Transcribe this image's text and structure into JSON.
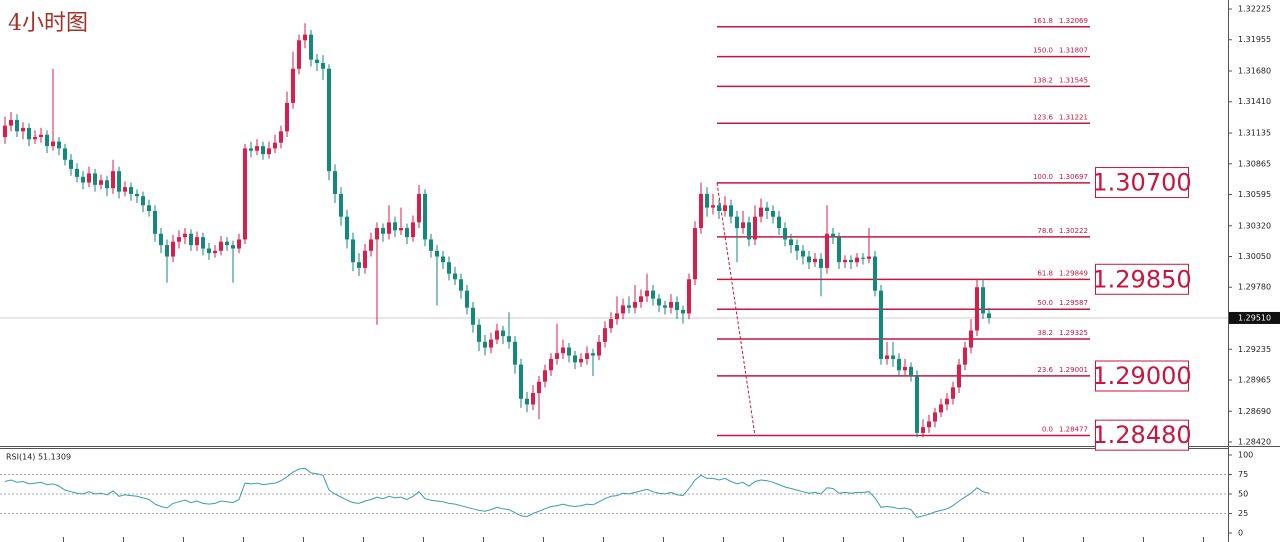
{
  "chart_data": {
    "type": "candlestick",
    "title": "4小时图",
    "colors": {
      "up": "#d81e4c",
      "down": "#12897b",
      "fib": "#c8163e",
      "rsi": "#3a9fa6"
    },
    "ylim": [
      1.2842,
      1.32225
    ],
    "yticks": [
      1.32225,
      1.31955,
      {
        "value": 1.3168,
        "label": "1.31680"
      },
      {
        "value": 1.3141,
        "label": "1.31410"
      },
      1.31135,
      1.30865,
      1.30595,
      {
        "value": 1.3032,
        "label": "1.30320"
      },
      {
        "value": 1.3005,
        "label": "1.30050"
      },
      {
        "value": 1.2978,
        "label": "1.29780"
      },
      1.29235,
      1.28965,
      {
        "value": 1.2869,
        "label": "1.28690"
      },
      {
        "value": 1.2842,
        "label": "1.28420"
      }
    ],
    "current_price": {
      "value": 1.2951,
      "label": "1.29510"
    },
    "candles": [
      [
        1.311,
        1.3128,
        1.3104,
        1.312
      ],
      [
        1.312,
        1.3132,
        1.3115,
        1.3125
      ],
      [
        1.3125,
        1.313,
        1.311,
        1.3115
      ],
      [
        1.3115,
        1.3123,
        1.3108,
        1.3118
      ],
      [
        1.3118,
        1.3122,
        1.3102,
        1.3108
      ],
      [
        1.3108,
        1.3116,
        1.3104,
        1.311
      ],
      [
        1.311,
        1.3118,
        1.3105,
        1.3112
      ],
      [
        1.3112,
        1.3116,
        1.3096,
        1.3102
      ],
      [
        1.3102,
        1.317,
        1.3098,
        1.3106
      ],
      [
        1.3106,
        1.311,
        1.3094,
        1.31
      ],
      [
        1.31,
        1.3104,
        1.3085,
        1.309
      ],
      [
        1.309,
        1.3095,
        1.3076,
        1.3082
      ],
      [
        1.3082,
        1.3087,
        1.307,
        1.3075
      ],
      [
        1.3075,
        1.308,
        1.3064,
        1.307
      ],
      [
        1.307,
        1.3084,
        1.3066,
        1.3078
      ],
      [
        1.3078,
        1.3082,
        1.3062,
        1.3068
      ],
      [
        1.3068,
        1.3077,
        1.3064,
        1.3072
      ],
      [
        1.3072,
        1.3076,
        1.3058,
        1.3065
      ],
      [
        1.3065,
        1.309,
        1.306,
        1.308
      ],
      [
        1.308,
        1.3084,
        1.3056,
        1.3062
      ],
      [
        1.3062,
        1.3071,
        1.3058,
        1.3066
      ],
      [
        1.3066,
        1.307,
        1.3054,
        1.306
      ],
      [
        1.306,
        1.3064,
        1.3052,
        1.3058
      ],
      [
        1.3058,
        1.3062,
        1.3044,
        1.305
      ],
      [
        1.305,
        1.3055,
        1.304,
        1.3045
      ],
      [
        1.3045,
        1.305,
        1.3018,
        1.3025
      ],
      [
        1.3025,
        1.303,
        1.3008,
        1.3015
      ],
      [
        1.3015,
        1.302,
        1.2982,
        1.3005
      ],
      [
        1.3005,
        1.3024,
        1.3,
        1.3018
      ],
      [
        1.3018,
        1.3028,
        1.3012,
        1.3022
      ],
      [
        1.3022,
        1.303,
        1.3016,
        1.3025
      ],
      [
        1.3025,
        1.3029,
        1.301,
        1.3015
      ],
      [
        1.3015,
        1.3027,
        1.301,
        1.3022
      ],
      [
        1.3022,
        1.3026,
        1.3006,
        1.3012
      ],
      [
        1.3012,
        1.3017,
        1.3002,
        1.3008
      ],
      [
        1.3008,
        1.3015,
        1.3004,
        1.301
      ],
      [
        1.301,
        1.3023,
        1.3006,
        1.3018
      ],
      [
        1.3018,
        1.3022,
        1.301,
        1.3015
      ],
      [
        1.3015,
        1.3019,
        1.2982,
        1.3012
      ],
      [
        1.3012,
        1.3025,
        1.3008,
        1.302
      ],
      [
        1.302,
        1.3104,
        1.3016,
        1.31
      ],
      [
        1.31,
        1.3106,
        1.3092,
        1.3098
      ],
      [
        1.3098,
        1.3108,
        1.3094,
        1.3102
      ],
      [
        1.3102,
        1.3106,
        1.309,
        1.3095
      ],
      [
        1.3095,
        1.3106,
        1.3091,
        1.31
      ],
      [
        1.31,
        1.3112,
        1.3096,
        1.3105
      ],
      [
        1.3105,
        1.312,
        1.31,
        1.3115
      ],
      [
        1.3115,
        1.315,
        1.311,
        1.314
      ],
      [
        1.314,
        1.3185,
        1.3135,
        1.317
      ],
      [
        1.317,
        1.32,
        1.3165,
        1.3195
      ],
      [
        1.3195,
        1.321,
        1.3188,
        1.32
      ],
      [
        1.32,
        1.3204,
        1.3172,
        1.3178
      ],
      [
        1.3178,
        1.3183,
        1.3168,
        1.3175
      ],
      [
        1.3175,
        1.3182,
        1.316,
        1.317
      ],
      [
        1.317,
        1.3174,
        1.3072,
        1.308
      ],
      [
        1.308,
        1.3086,
        1.3052,
        1.306
      ],
      [
        1.306,
        1.3066,
        1.3032,
        1.304
      ],
      [
        1.304,
        1.3046,
        1.3012,
        1.302
      ],
      [
        1.302,
        1.3026,
        1.2992,
        1.3
      ],
      [
        1.3,
        1.3008,
        1.2988,
        1.2995
      ],
      [
        1.2995,
        1.3016,
        1.299,
        1.301
      ],
      [
        1.301,
        1.3026,
        1.3005,
        1.302
      ],
      [
        1.302,
        1.3035,
        1.2945,
        1.303
      ],
      [
        1.303,
        1.3034,
        1.3018,
        1.3025
      ],
      [
        1.3025,
        1.305,
        1.302,
        1.3035
      ],
      [
        1.3035,
        1.304,
        1.3022,
        1.3028
      ],
      [
        1.3028,
        1.3048,
        1.3024,
        1.303
      ],
      [
        1.303,
        1.3034,
        1.3016,
        1.3022
      ],
      [
        1.3022,
        1.3041,
        1.3018,
        1.3035
      ],
      [
        1.3035,
        1.3068,
        1.303,
        1.306
      ],
      [
        1.306,
        1.3064,
        1.3014,
        1.302
      ],
      [
        1.302,
        1.3025,
        1.3004,
        1.301
      ],
      [
        1.301,
        1.3015,
        1.2962,
        1.3005
      ],
      [
        1.3005,
        1.301,
        1.2994,
        1.3
      ],
      [
        1.3,
        1.3005,
        1.2984,
        1.299
      ],
      [
        1.299,
        1.2996,
        1.298,
        1.2985
      ],
      [
        1.2985,
        1.299,
        1.2968,
        1.2975
      ],
      [
        1.2975,
        1.298,
        1.2954,
        1.296
      ],
      [
        1.296,
        1.2965,
        1.2938,
        1.2945
      ],
      [
        1.2945,
        1.295,
        1.2922,
        1.293
      ],
      [
        1.293,
        1.2936,
        1.2918,
        1.2925
      ],
      [
        1.2925,
        1.2938,
        1.292,
        1.2932
      ],
      [
        1.2932,
        1.2946,
        1.2928,
        1.294
      ],
      [
        1.294,
        1.2944,
        1.2928,
        1.2935
      ],
      [
        1.2935,
        1.2956,
        1.2924,
        1.293
      ],
      [
        1.293,
        1.2935,
        1.2902,
        1.291
      ],
      [
        1.291,
        1.2915,
        1.2872,
        1.288
      ],
      [
        1.288,
        1.2886,
        1.2868,
        1.2875
      ],
      [
        1.2875,
        1.2892,
        1.287,
        1.2885
      ],
      [
        1.2885,
        1.29,
        1.2862,
        1.2895
      ],
      [
        1.2895,
        1.291,
        1.289,
        1.2905
      ],
      [
        1.2905,
        1.292,
        1.29,
        1.2915
      ],
      [
        1.2915,
        1.2946,
        1.291,
        1.292
      ],
      [
        1.292,
        1.2932,
        1.2915,
        1.2925
      ],
      [
        1.2925,
        1.2929,
        1.2912,
        1.2918
      ],
      [
        1.2918,
        1.2922,
        1.2906,
        1.2912
      ],
      [
        1.2912,
        1.292,
        1.2908,
        1.2915
      ],
      [
        1.2915,
        1.2926,
        1.291,
        1.292
      ],
      [
        1.292,
        1.2924,
        1.29,
        1.2918
      ],
      [
        1.2918,
        1.2936,
        1.2914,
        1.293
      ],
      [
        1.293,
        1.2948,
        1.2925,
        1.2942
      ],
      [
        1.2942,
        1.2956,
        1.2938,
        1.295
      ],
      [
        1.295,
        1.297,
        1.2945,
        1.2955
      ],
      [
        1.2955,
        1.2968,
        1.295,
        1.2962
      ],
      [
        1.2962,
        1.297,
        1.2955,
        1.296
      ],
      [
        1.296,
        1.298,
        1.2955,
        1.2965
      ],
      [
        1.2965,
        1.2976,
        1.296,
        1.297
      ],
      [
        1.297,
        1.299,
        1.2965,
        1.2975
      ],
      [
        1.2975,
        1.298,
        1.2962,
        1.2968
      ],
      [
        1.2968,
        1.2972,
        1.2956,
        1.2962
      ],
      [
        1.2962,
        1.2966,
        1.2954,
        1.296
      ],
      [
        1.296,
        1.2972,
        1.2955,
        1.2965
      ],
      [
        1.2965,
        1.297,
        1.295,
        1.2958
      ],
      [
        1.2958,
        1.2962,
        1.2946,
        1.2955
      ],
      [
        1.2955,
        1.299,
        1.295,
        1.2985
      ],
      [
        1.2985,
        1.3036,
        1.298,
        1.303
      ],
      [
        1.303,
        1.307,
        1.3025,
        1.306
      ],
      [
        1.306,
        1.3066,
        1.304,
        1.3048
      ],
      [
        1.3048,
        1.306,
        1.3042,
        1.305
      ],
      [
        1.305,
        1.3055,
        1.3038,
        1.3045
      ],
      [
        1.3045,
        1.3058,
        1.304,
        1.305
      ],
      [
        1.305,
        1.3055,
        1.3034,
        1.304
      ],
      [
        1.304,
        1.3045,
        1.3,
        1.303
      ],
      [
        1.303,
        1.3045,
        1.3025,
        1.3035
      ],
      [
        1.3035,
        1.304,
        1.3014,
        1.302
      ],
      [
        1.302,
        1.305,
        1.3015,
        1.304
      ],
      [
        1.304,
        1.3056,
        1.3035,
        1.3048
      ],
      [
        1.3048,
        1.3053,
        1.3038,
        1.3045
      ],
      [
        1.3045,
        1.305,
        1.3034,
        1.304
      ],
      [
        1.304,
        1.3045,
        1.3024,
        1.303
      ],
      [
        1.303,
        1.3035,
        1.3014,
        1.302
      ],
      [
        1.302,
        1.3025,
        1.3008,
        1.3015
      ],
      [
        1.3015,
        1.302,
        1.3002,
        1.301
      ],
      [
        1.301,
        1.3015,
        1.2998,
        1.3005
      ],
      [
        1.3005,
        1.301,
        1.2994,
        1.3
      ],
      [
        1.3,
        1.3008,
        1.2996,
        1.3003
      ],
      [
        1.3003,
        1.3008,
        1.297,
        1.2995
      ],
      [
        1.2995,
        1.305,
        1.299,
        1.3025
      ],
      [
        1.3025,
        1.303,
        1.3016,
        1.3022
      ],
      [
        1.3022,
        1.3026,
        1.2994,
        1.3
      ],
      [
        1.3,
        1.3006,
        1.2995,
        1.3002
      ],
      [
        1.3002,
        1.3006,
        1.2994,
        1.3
      ],
      [
        1.3,
        1.3008,
        1.2996,
        1.3004
      ],
      [
        1.3004,
        1.3008,
        1.2998,
        1.3003
      ],
      [
        1.3003,
        1.303,
        1.2999,
        1.3005
      ],
      [
        1.3005,
        1.301,
        1.297,
        1.2975
      ],
      [
        1.2975,
        1.298,
        1.291,
        1.2915
      ],
      [
        1.2915,
        1.293,
        1.291,
        1.2918
      ],
      [
        1.2918,
        1.293,
        1.2908,
        1.2915
      ],
      [
        1.2915,
        1.292,
        1.29,
        1.2905
      ],
      [
        1.2905,
        1.2915,
        1.29,
        1.2908
      ],
      [
        1.2908,
        1.2912,
        1.2895,
        1.29
      ],
      [
        1.29,
        1.2905,
        1.2846,
        1.285
      ],
      [
        1.285,
        1.2862,
        1.2846,
        1.2855
      ],
      [
        1.2855,
        1.2866,
        1.285,
        1.286
      ],
      [
        1.286,
        1.2872,
        1.2855,
        1.2868
      ],
      [
        1.2868,
        1.288,
        1.2864,
        1.2875
      ],
      [
        1.2875,
        1.2885,
        1.287,
        1.288
      ],
      [
        1.288,
        1.2895,
        1.2875,
        1.289
      ],
      [
        1.289,
        1.2915,
        1.2885,
        1.291
      ],
      [
        1.291,
        1.293,
        1.2905,
        1.2925
      ],
      [
        1.2925,
        1.295,
        1.292,
        1.294
      ],
      [
        1.294,
        1.2985,
        1.2935,
        1.2978
      ],
      [
        1.2978,
        1.2985,
        1.295,
        1.2955
      ],
      [
        1.2955,
        1.296,
        1.2946,
        1.2951
      ]
    ],
    "fibonacci": [
      {
        "ratio": 161.8,
        "price": 1.32069
      },
      {
        "ratio": {
          "value": 150,
          "label": "150.0"
        },
        "price": 1.31807
      },
      {
        "ratio": 138.2,
        "price": 1.31545
      },
      {
        "ratio": 123.6,
        "price": 1.31221
      },
      {
        "ratio": {
          "value": 100,
          "label": "100.0"
        },
        "price": 1.30697
      },
      {
        "ratio": 78.6,
        "price": 1.30222
      },
      {
        "ratio": 61.8,
        "price": 1.29849
      },
      {
        "ratio": {
          "value": 50,
          "label": "50.0"
        },
        "price": 1.29587
      },
      {
        "ratio": 38.2,
        "price": 1.29325
      },
      {
        "ratio": 23.6,
        "price": 1.29001
      },
      {
        "ratio": {
          "value": 0,
          "label": "0.0"
        },
        "price": 1.28477
      }
    ],
    "annotations": [
      {
        "value": 1.307,
        "label": "1.30700"
      },
      {
        "value": 1.2985,
        "label": "1.29850"
      },
      {
        "value": 1.29,
        "label": "1.29000"
      },
      {
        "value": 1.2848,
        "label": "1.28480"
      }
    ],
    "rsi": {
      "label": "RSI(14) 51.1309",
      "ylim": [
        0,
        100
      ],
      "yticks": [
        100,
        75,
        50,
        25,
        0
      ],
      "grid": [
        75,
        50,
        25
      ],
      "values": [
        66,
        68,
        65,
        66,
        63,
        64,
        65,
        62,
        63,
        60,
        55,
        53,
        51,
        50,
        53,
        50,
        51,
        49,
        54,
        47,
        49,
        48,
        47,
        45,
        43,
        37,
        34,
        32,
        38,
        40,
        42,
        39,
        41,
        38,
        37,
        38,
        41,
        40,
        39,
        43,
        64,
        63,
        64,
        62,
        63,
        64,
        67,
        72,
        78,
        82,
        83,
        77,
        76,
        74,
        55,
        50,
        46,
        42,
        39,
        38,
        41,
        43,
        46,
        44,
        47,
        45,
        46,
        43,
        47,
        53,
        44,
        42,
        41,
        40,
        38,
        37,
        35,
        33,
        31,
        29,
        28,
        30,
        33,
        31,
        30,
        26,
        22,
        21,
        25,
        28,
        31,
        34,
        35,
        37,
        35,
        34,
        35,
        37,
        36,
        40,
        44,
        47,
        48,
        51,
        50,
        52,
        54,
        56,
        53,
        51,
        50,
        52,
        49,
        48,
        57,
        68,
        74,
        70,
        70,
        68,
        70,
        66,
        63,
        65,
        60,
        66,
        68,
        67,
        65,
        62,
        59,
        57,
        55,
        53,
        51,
        52,
        50,
        58,
        57,
        51,
        52,
        51,
        52,
        52,
        53,
        45,
        33,
        34,
        33,
        31,
        32,
        30,
        20,
        22,
        24,
        27,
        29,
        31,
        35,
        41,
        46,
        51,
        58,
        53,
        51.13
      ]
    }
  }
}
